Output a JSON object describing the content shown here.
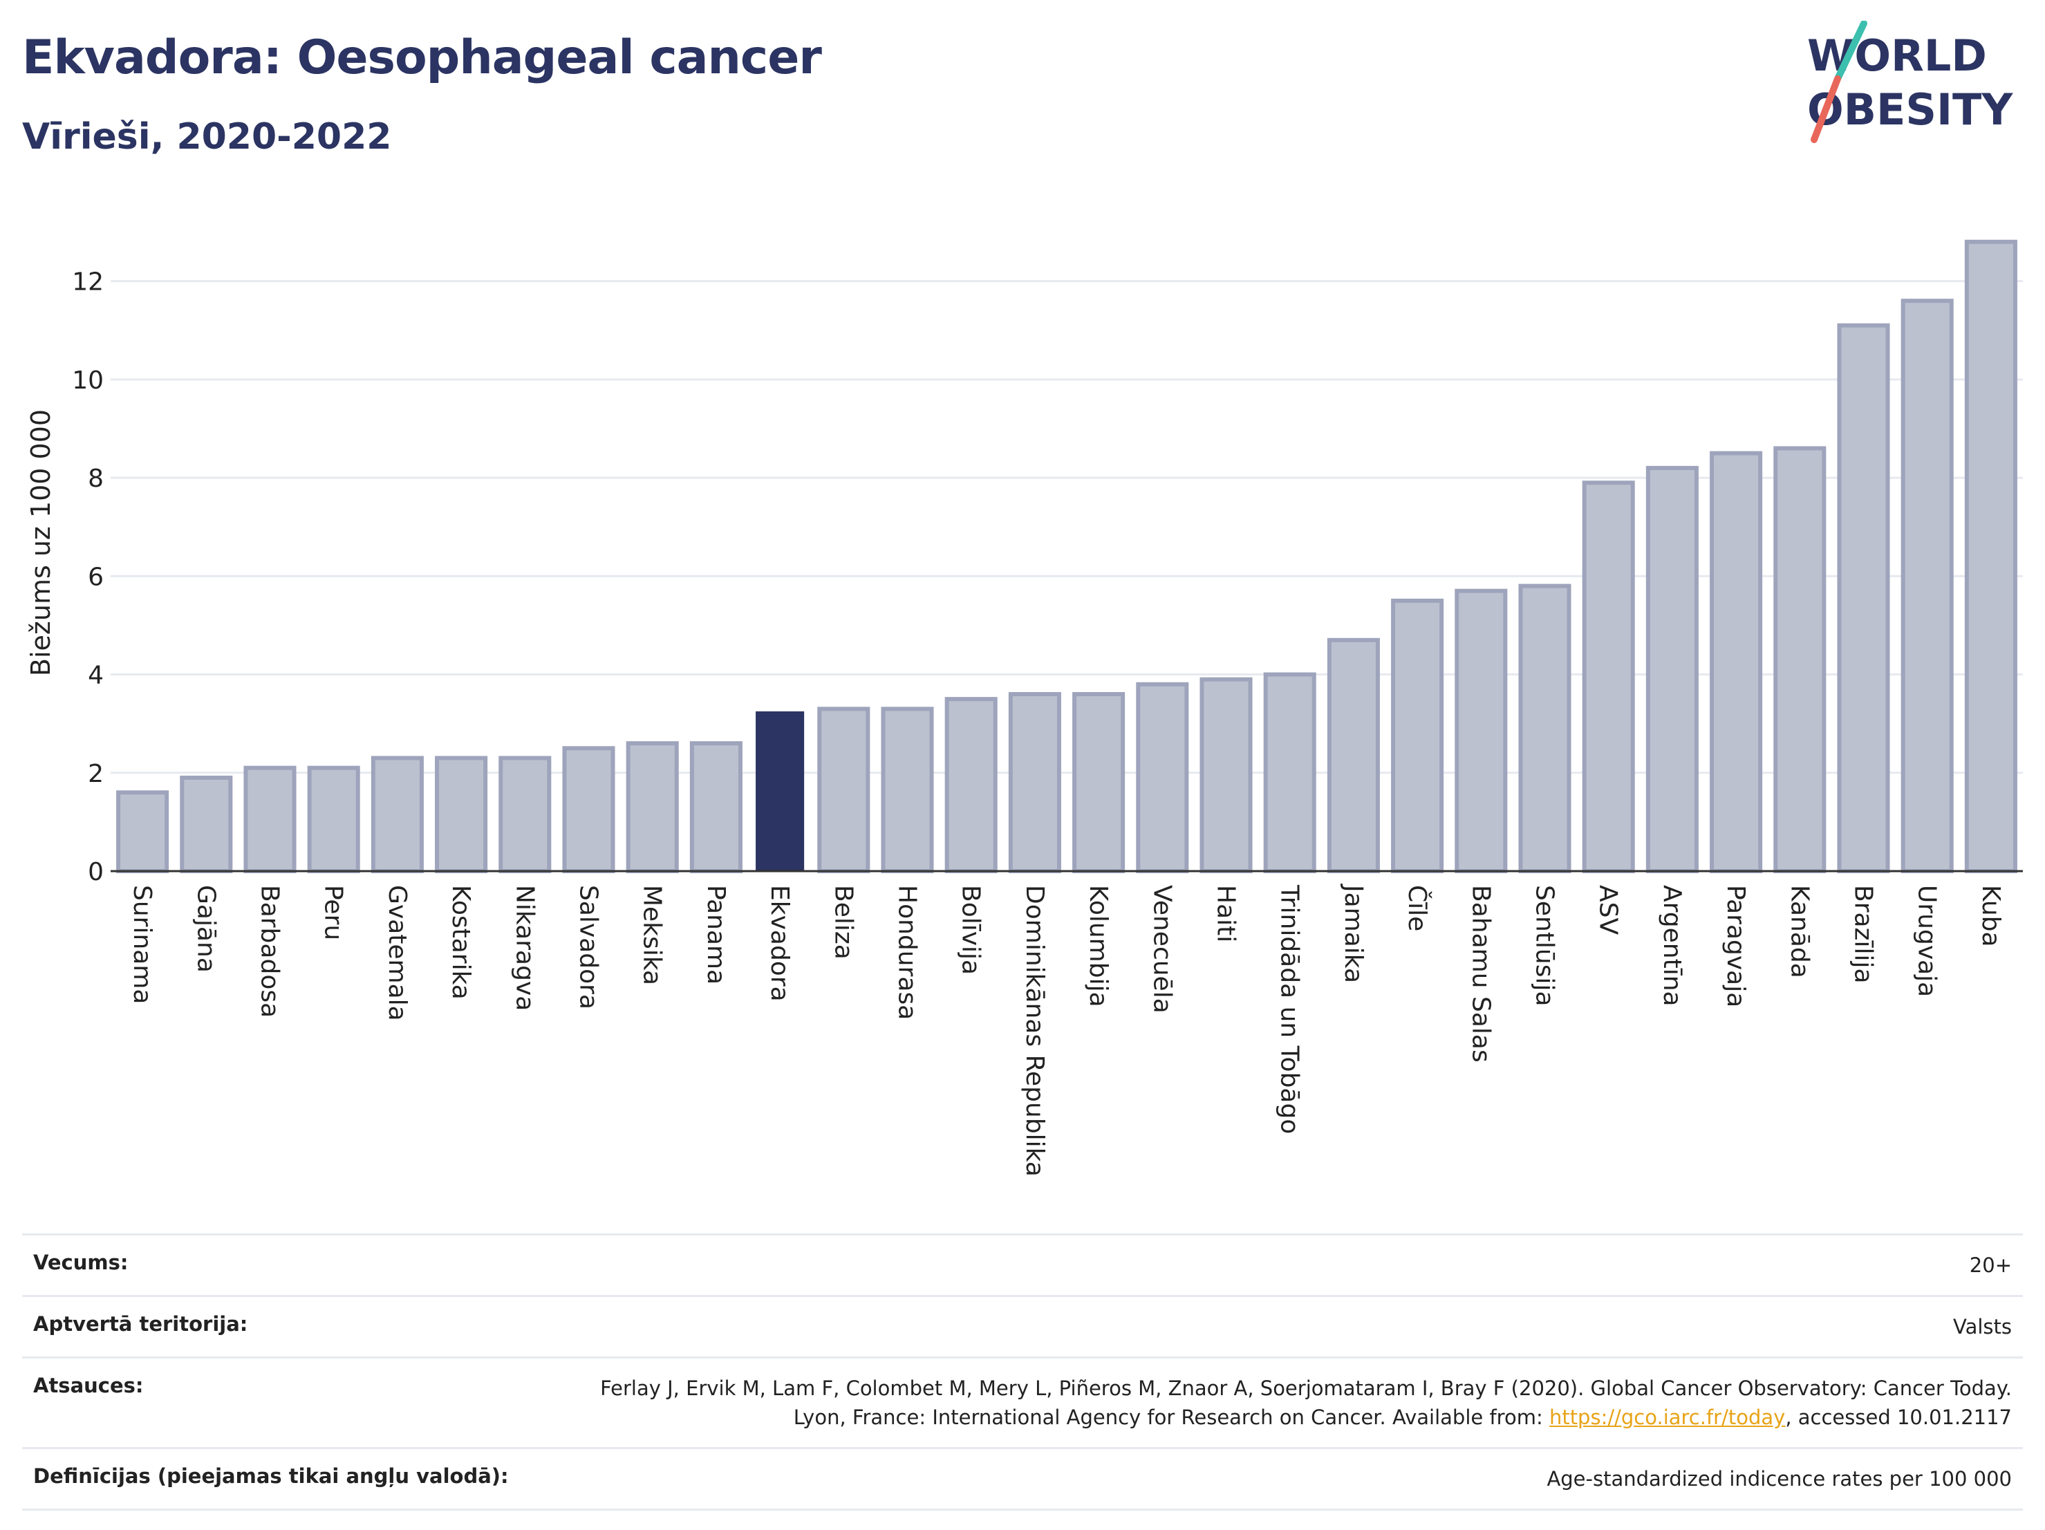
{
  "header": {
    "title": "Ekvadora: Oesophageal cancer",
    "subtitle": "Vīrieši, 2020-2022"
  },
  "logo": {
    "line1": "WORLD",
    "line2": "OBESITY"
  },
  "colors": {
    "bar": "#bcc1d0",
    "bar_border": "#9ea4bb",
    "highlight": "#2b3462",
    "title": "#2b3462",
    "grid": "#e7e9f0",
    "link": "#e8a317"
  },
  "chart_data": {
    "type": "bar",
    "ylabel": "Biežums uz 100 000",
    "ylim": [
      0,
      13.5
    ],
    "yticks": [
      0,
      2,
      4,
      6,
      8,
      10,
      12
    ],
    "grid": true,
    "highlight": "Ekvadora",
    "categories": [
      "Surinama",
      "Gajāna",
      "Barbadosa",
      "Peru",
      "Gvatemala",
      "Kostarika",
      "Nikaragva",
      "Salvadora",
      "Meksika",
      "Panama",
      "Ekvadora",
      "Beliza",
      "Hondurasa",
      "Bolīvija",
      "Dominikānas Republika",
      "Kolumbija",
      "Venecuēla",
      "Haiti",
      "Trinidāda un Tobāgo",
      "Jamaika",
      "Čīle",
      "Bahamu Salas",
      "Sentlūsija",
      "ASV",
      "Argentīna",
      "Paragvaja",
      "Kanāda",
      "Brazīlija",
      "Urugvaja",
      "Kuba"
    ],
    "values": [
      1.6,
      1.9,
      2.1,
      2.1,
      2.3,
      2.3,
      2.3,
      2.5,
      2.6,
      2.6,
      3.25,
      3.3,
      3.3,
      3.5,
      3.6,
      3.6,
      3.8,
      3.9,
      4.0,
      4.7,
      5.5,
      5.7,
      5.8,
      7.9,
      8.2,
      8.5,
      8.6,
      11.1,
      11.6,
      12.8
    ]
  },
  "info": [
    {
      "label": "Vecums:",
      "value": "20+"
    },
    {
      "label": "Aptvertā teritorija:",
      "value": "Valsts"
    },
    {
      "label": "Atsauces:",
      "value_pre": "Ferlay J, Ervik M, Lam F, Colombet M, Mery L, Piñeros M, Znaor A, Soerjomataram I, Bray F (2020). Global Cancer Observatory: Cancer Today. Lyon, France: International Agency for Research on Cancer. Available from: ",
      "link": "https://gco.iarc.fr/today",
      "value_post": ", accessed 10.01.2117"
    },
    {
      "label": "Definīcijas (pieejamas tikai angļu valodā):",
      "value": "Age-standardized indicence rates per 100 000"
    }
  ]
}
